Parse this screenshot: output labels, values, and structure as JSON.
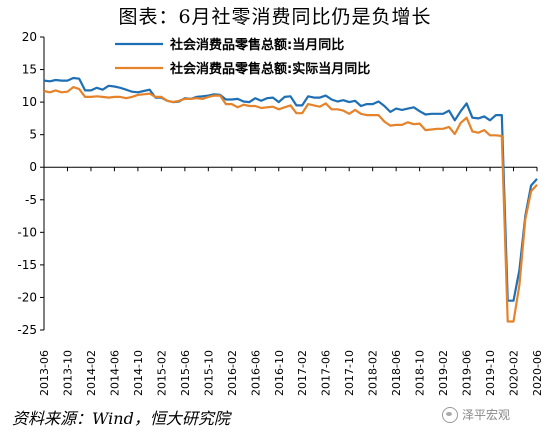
{
  "title": "图表：6月社零消费同比仍是负增长",
  "source": "资料来源：Wind，恒大研究院",
  "watermark": "泽平宏观",
  "colors": {
    "nominal": "#1f6fb4",
    "real": "#e5832a"
  },
  "chart_data": {
    "type": "line",
    "ylim": [
      -25,
      20
    ],
    "yticks": [
      20,
      15,
      10,
      5,
      0,
      -5,
      -10,
      -15,
      -20,
      -25
    ],
    "xtick_labels": [
      "2013-06",
      "2013-10",
      "2014-02",
      "2014-06",
      "2014-10",
      "2015-02",
      "2015-06",
      "2015-10",
      "2016-02",
      "2016-06",
      "2016-10",
      "2017-02",
      "2017-06",
      "2017-10",
      "2018-02",
      "2018-06",
      "2018-10",
      "2019-02",
      "2019-06",
      "2019-10",
      "2020-02",
      "2020-06"
    ],
    "x": [
      "2013-06",
      "2013-07",
      "2013-08",
      "2013-09",
      "2013-10",
      "2013-11",
      "2013-12",
      "2014-01",
      "2014-02",
      "2014-03",
      "2014-04",
      "2014-05",
      "2014-06",
      "2014-07",
      "2014-08",
      "2014-09",
      "2014-10",
      "2014-11",
      "2014-12",
      "2015-01",
      "2015-02",
      "2015-03",
      "2015-04",
      "2015-05",
      "2015-06",
      "2015-07",
      "2015-08",
      "2015-09",
      "2015-10",
      "2015-11",
      "2015-12",
      "2016-01",
      "2016-02",
      "2016-03",
      "2016-04",
      "2016-05",
      "2016-06",
      "2016-07",
      "2016-08",
      "2016-09",
      "2016-10",
      "2016-11",
      "2016-12",
      "2017-01",
      "2017-02",
      "2017-03",
      "2017-04",
      "2017-05",
      "2017-06",
      "2017-07",
      "2017-08",
      "2017-09",
      "2017-10",
      "2017-11",
      "2017-12",
      "2018-01",
      "2018-02",
      "2018-03",
      "2018-04",
      "2018-05",
      "2018-06",
      "2018-07",
      "2018-08",
      "2018-09",
      "2018-10",
      "2018-11",
      "2018-12",
      "2019-01",
      "2019-02",
      "2019-03",
      "2019-04",
      "2019-05",
      "2019-06",
      "2019-07",
      "2019-08",
      "2019-09",
      "2019-10",
      "2019-11",
      "2019-12",
      "2020-01",
      "2020-02",
      "2020-03",
      "2020-04",
      "2020-05",
      "2020-06"
    ],
    "series": [
      {
        "name": "社会消费品零售总额:当月同比",
        "values": [
          13.3,
          13.2,
          13.4,
          13.3,
          13.3,
          13.7,
          13.6,
          11.8,
          11.8,
          12.2,
          11.9,
          12.5,
          12.4,
          12.2,
          11.9,
          11.6,
          11.5,
          11.7,
          11.9,
          10.7,
          10.7,
          10.2,
          10.0,
          10.1,
          10.6,
          10.5,
          10.8,
          10.9,
          11.0,
          11.2,
          11.1,
          10.4,
          10.4,
          10.5,
          10.1,
          10.0,
          10.6,
          10.2,
          10.6,
          10.7,
          10.0,
          10.8,
          10.9,
          9.5,
          9.5,
          10.9,
          10.7,
          10.7,
          11.0,
          10.4,
          10.1,
          10.3,
          10.0,
          10.2,
          9.4,
          9.7,
          9.7,
          10.1,
          9.4,
          8.5,
          9.0,
          8.8,
          9.0,
          9.2,
          8.6,
          8.1,
          8.2,
          8.2,
          8.2,
          8.7,
          7.2,
          8.6,
          9.8,
          7.6,
          7.5,
          7.8,
          7.2,
          8.0,
          8.0,
          -20.5,
          -20.5,
          -15.8,
          -7.5,
          -2.8,
          -1.8
        ]
      },
      {
        "name": "社会消费品零售总额:实际当月同比",
        "values": [
          11.7,
          11.5,
          11.8,
          11.5,
          11.6,
          12.3,
          12.0,
          10.8,
          10.8,
          10.9,
          10.8,
          10.7,
          10.8,
          10.8,
          10.6,
          10.8,
          11.1,
          11.2,
          11.3,
          10.8,
          10.8,
          10.2,
          10.0,
          10.2,
          10.5,
          10.5,
          10.6,
          10.5,
          10.8,
          11.0,
          11.0,
          9.7,
          9.7,
          9.2,
          9.6,
          9.4,
          9.4,
          9.1,
          9.2,
          9.3,
          8.9,
          9.2,
          9.5,
          8.3,
          8.3,
          9.7,
          9.5,
          9.3,
          9.8,
          8.9,
          8.9,
          8.7,
          8.2,
          8.8,
          8.2,
          8.0,
          8.0,
          8.0,
          7.0,
          6.4,
          6.5,
          6.5,
          6.9,
          6.6,
          6.7,
          5.7,
          5.8,
          5.9,
          5.9,
          6.2,
          5.1,
          6.8,
          7.6,
          5.5,
          5.3,
          5.7,
          4.9,
          4.9,
          4.8,
          -23.7,
          -23.7,
          -18.1,
          -8.0,
          -3.7,
          -2.7
        ]
      }
    ]
  }
}
